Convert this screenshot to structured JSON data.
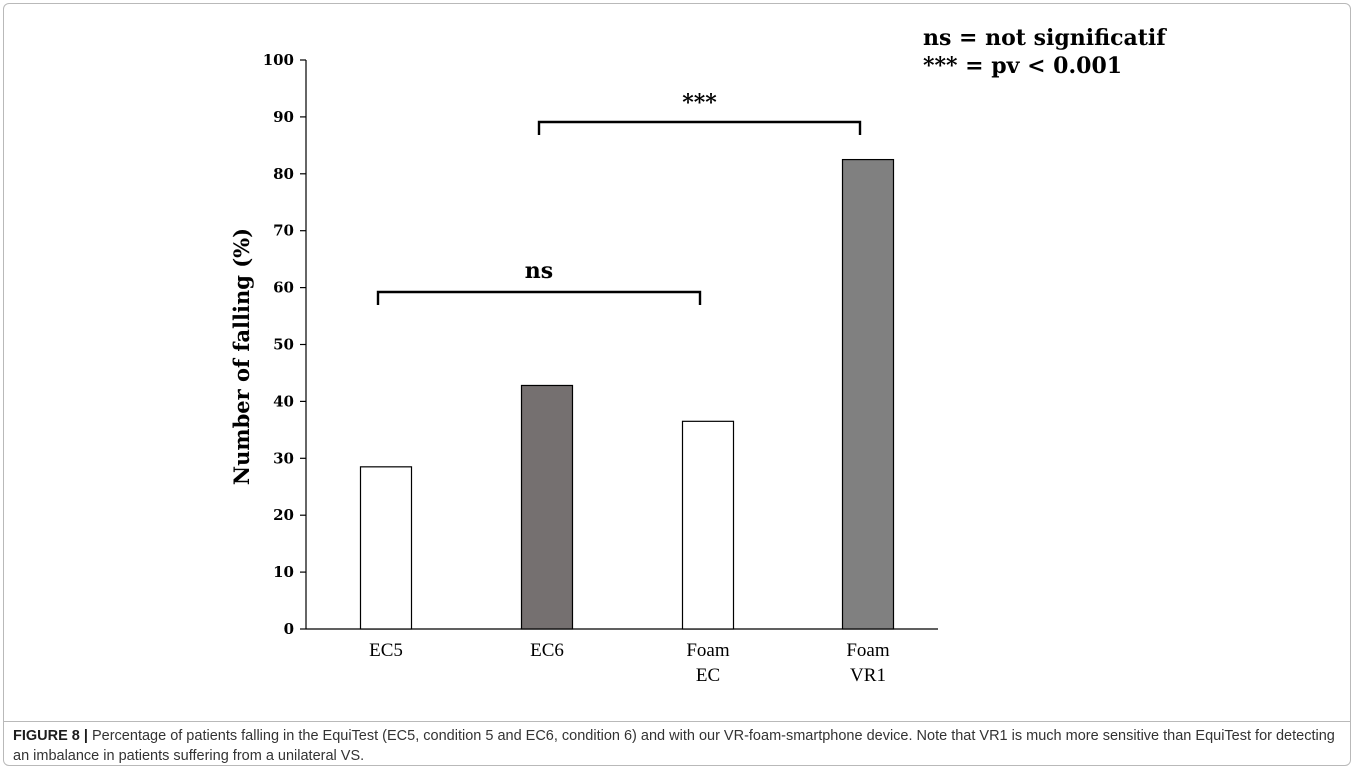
{
  "chart_data": {
    "type": "bar",
    "categories": [
      [
        "EC5"
      ],
      [
        "EC6"
      ],
      [
        "Foam",
        "EC"
      ],
      [
        "Foam",
        "VR1"
      ]
    ],
    "values": [
      28.5,
      42.8,
      36.5,
      82.5
    ],
    "bar_colors": [
      "#ffffff",
      "#757070",
      "#ffffff",
      "#808080"
    ],
    "ylabel": "Number of falling (%)",
    "ylim": [
      0,
      100
    ],
    "yticks": [
      0,
      10,
      20,
      30,
      40,
      50,
      60,
      70,
      80,
      90,
      100
    ],
    "grid": false,
    "annotations": [
      {
        "label": "ns",
        "from": 0,
        "to": 2
      },
      {
        "label": "***",
        "from": 1,
        "to": 3
      }
    ]
  },
  "legend_note": {
    "line1": "ns = not significatif",
    "line2": "*** = pv < 0.001"
  },
  "caption": {
    "label": "FIGURE 8 |",
    "text": " Percentage of patients falling in the EquiTest (EC5, condition 5 and EC6, condition 6) and with our VR-foam-smartphone device. Note that VR1 is much more sensitive than EquiTest for detecting an imbalance in patients suffering from a unilateral VS."
  }
}
